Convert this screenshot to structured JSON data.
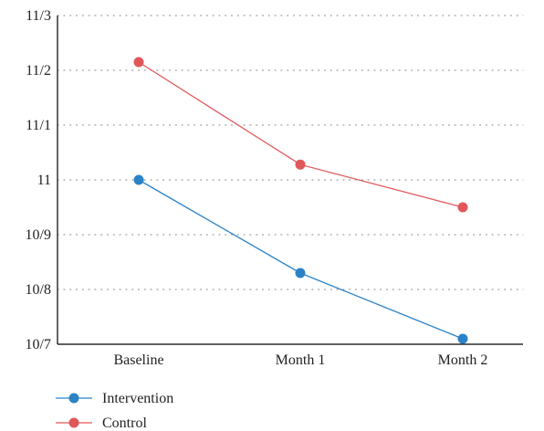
{
  "chart_data": {
    "type": "line",
    "categories": [
      "Baseline",
      "Month 1",
      "Month 2"
    ],
    "y_ticks": [
      {
        "value": 10.7,
        "label": "10/7"
      },
      {
        "value": 10.8,
        "label": "10/8"
      },
      {
        "value": 10.9,
        "label": "10/9"
      },
      {
        "value": 11.0,
        "label": "11"
      },
      {
        "value": 11.1,
        "label": "11/1"
      },
      {
        "value": 11.2,
        "label": "11/2"
      },
      {
        "value": 11.3,
        "label": "11/3"
      }
    ],
    "ylim": [
      10.7,
      11.3
    ],
    "grid": "horizontal dotted",
    "legend_position": "bottom-left",
    "series": [
      {
        "name": "Intervention",
        "color": "#2b83c6",
        "values": [
          11.0,
          10.83,
          10.71
        ]
      },
      {
        "name": "Control",
        "color": "#e0575a",
        "values": [
          11.215,
          11.028,
          10.95
        ]
      }
    ]
  }
}
